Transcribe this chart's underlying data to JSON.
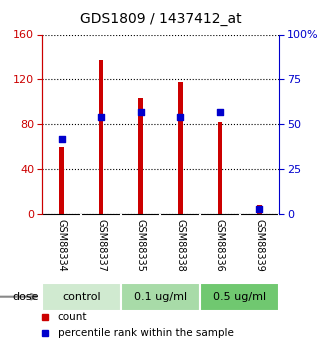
{
  "title": "GDS1809 / 1437412_at",
  "samples": [
    "GSM88334",
    "GSM88337",
    "GSM88335",
    "GSM88338",
    "GSM88336",
    "GSM88339"
  ],
  "counts": [
    60,
    137,
    103,
    118,
    82,
    8
  ],
  "percentiles": [
    42,
    54,
    57,
    54,
    57,
    3
  ],
  "groups": [
    {
      "label": "control",
      "indices": [
        0,
        1
      ],
      "color": "#d0ead0"
    },
    {
      "label": "0.1 ug/ml",
      "indices": [
        2,
        3
      ],
      "color": "#a8dba8"
    },
    {
      "label": "0.5 ug/ml",
      "indices": [
        4,
        5
      ],
      "color": "#70c870"
    }
  ],
  "bar_color_red": "#cc0000",
  "bar_color_blue": "#0000cc",
  "left_yaxis": {
    "min": 0,
    "max": 160,
    "ticks": [
      0,
      40,
      80,
      120,
      160
    ],
    "color": "#cc0000"
  },
  "right_yaxis": {
    "min": 0,
    "max": 100,
    "ticks": [
      0,
      25,
      50,
      75,
      100
    ],
    "color": "#0000cc"
  },
  "right_yaxis_labels": [
    "0",
    "25",
    "50",
    "75",
    "100%"
  ],
  "background_color": "#ffffff",
  "plot_bg_color": "#ffffff",
  "sample_bg_color": "#c8c8c8",
  "dose_label": "dose",
  "legend_count": "count",
  "legend_percentile": "percentile rank within the sample",
  "bar_width": 0.12
}
